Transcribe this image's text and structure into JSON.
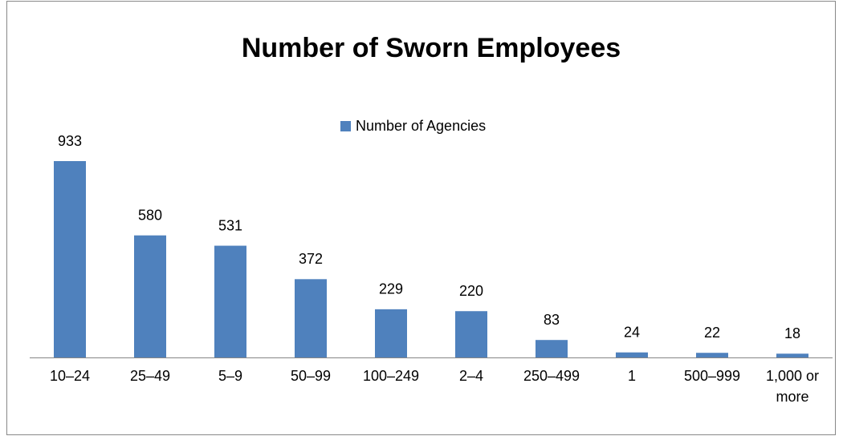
{
  "chart_data": {
    "type": "bar",
    "title": "Number of Sworn Employees",
    "categories": [
      "10–24",
      "25–49",
      "5–9",
      "50–99",
      "100–249",
      "2–4",
      "250–499",
      "1",
      "500–999",
      "1,000 or more"
    ],
    "series": [
      {
        "name": "Number of Agencies",
        "color": "#4f81bd",
        "values": [
          933,
          580,
          531,
          372,
          229,
          220,
          83,
          24,
          22,
          18
        ]
      }
    ],
    "legend": "top"
  }
}
